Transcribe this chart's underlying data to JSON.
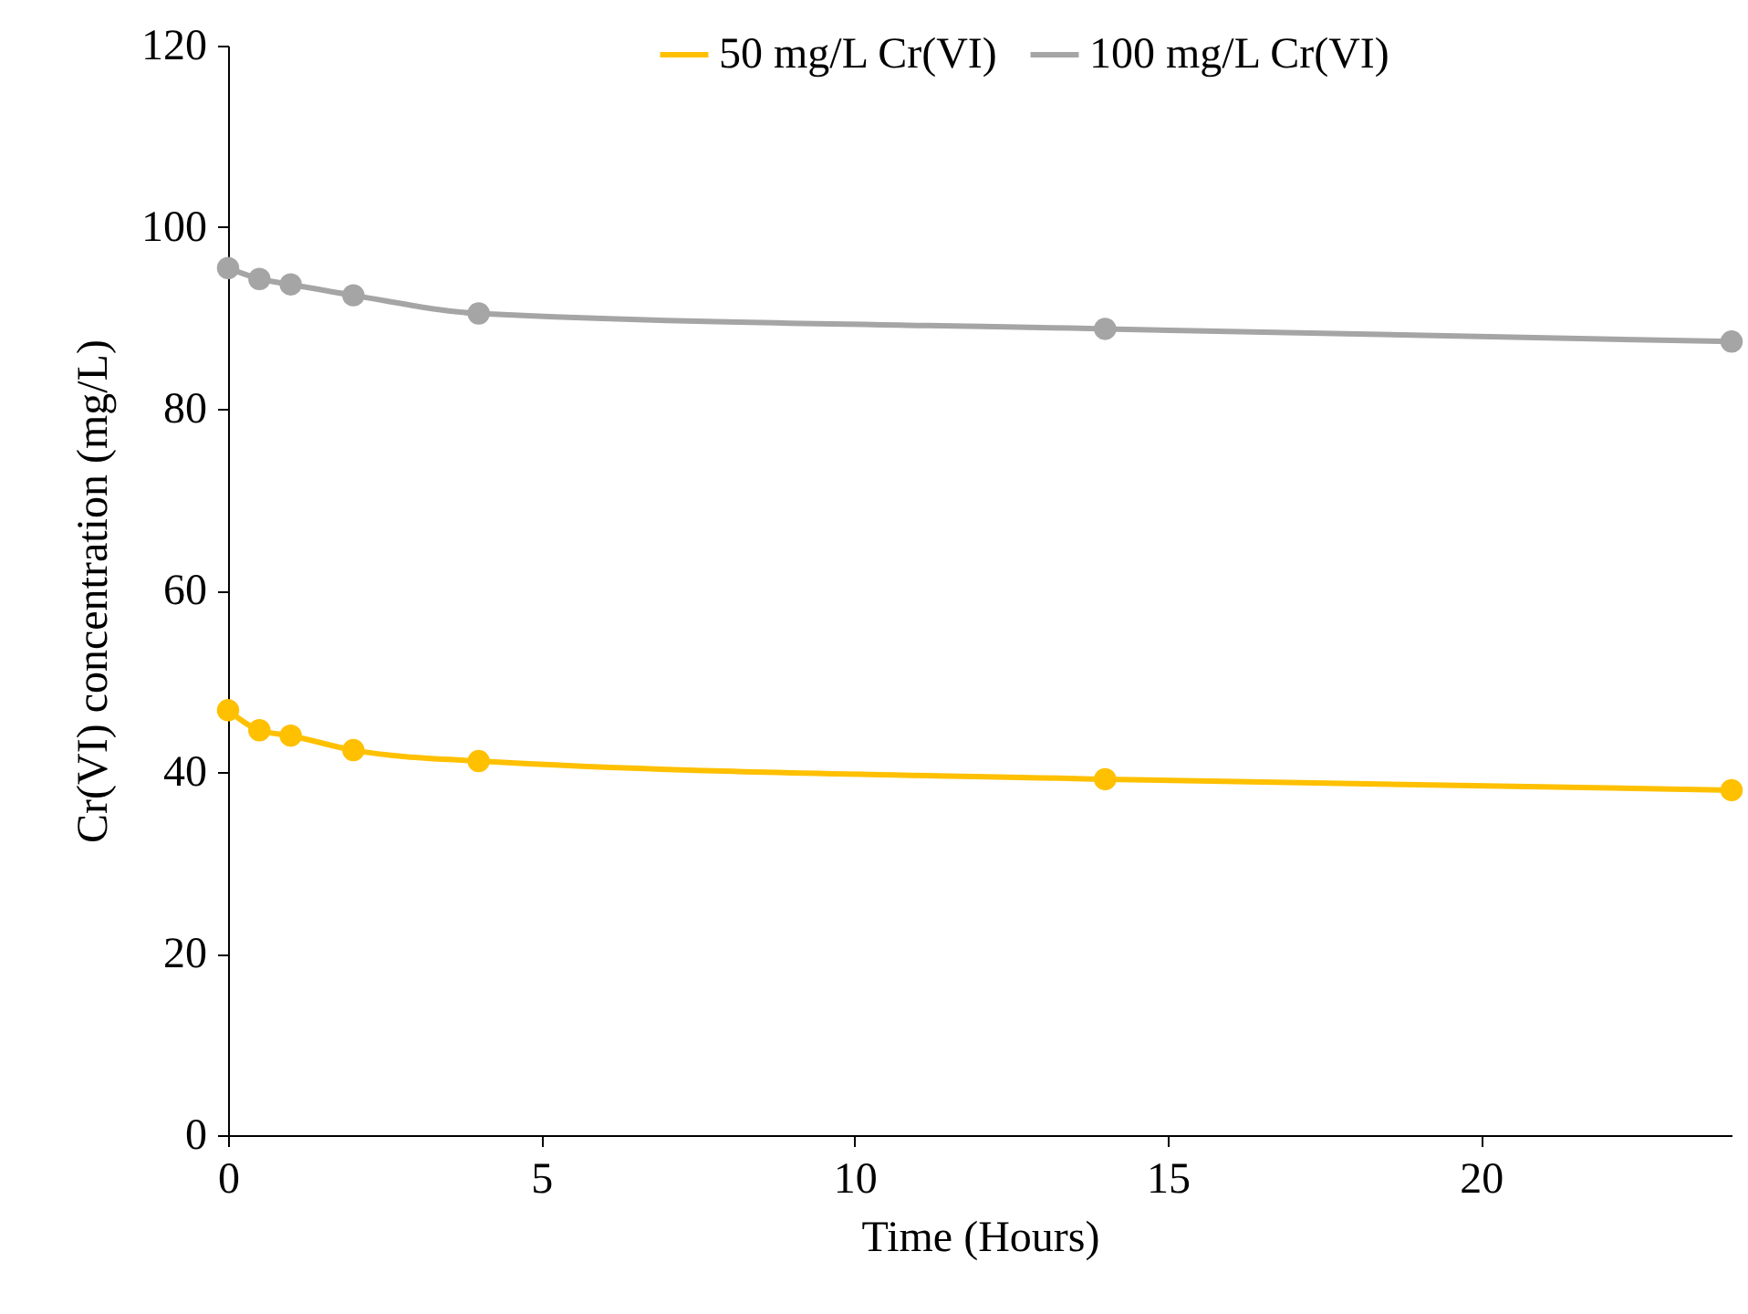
{
  "chart_data": {
    "type": "line",
    "xlabel": "Time (Hours)",
    "ylabel": "Cr(VI) concentration (mg/L)",
    "xlim": [
      0,
      24
    ],
    "xticks": [
      0,
      5,
      10,
      15,
      20
    ],
    "ylim": [
      0,
      120
    ],
    "yticks": [
      0,
      20,
      40,
      60,
      80,
      100,
      120
    ],
    "marker": "circle",
    "legend": "top right",
    "grid": false,
    "series": [
      {
        "name": "50 mg/L Cr(VI)",
        "color": "#ffc000",
        "x": [
          0,
          0.5,
          1,
          2,
          4,
          14,
          24
        ],
        "values": [
          46.8,
          44.6,
          44.0,
          42.4,
          41.2,
          39.2,
          38.0
        ]
      },
      {
        "name": "100 mg/L Cr(VI)",
        "color": "#a5a5a5",
        "x": [
          0,
          0.5,
          1,
          2,
          4,
          14,
          24
        ],
        "values": [
          95.5,
          94.3,
          93.7,
          92.5,
          90.5,
          88.8,
          87.4
        ]
      }
    ]
  }
}
